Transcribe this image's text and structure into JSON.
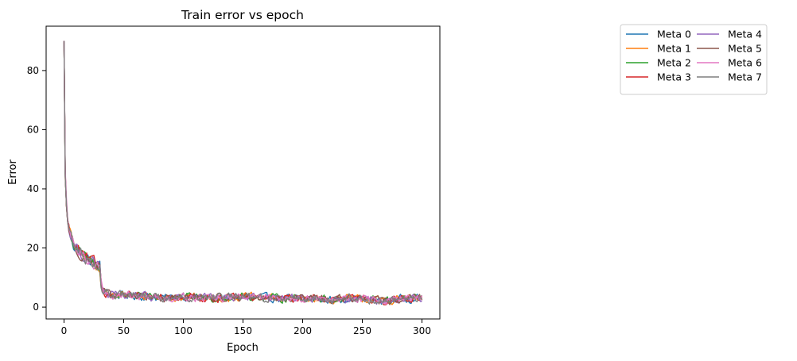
{
  "chart_data": {
    "type": "line",
    "title": "Train error vs epoch",
    "xlabel": "Epoch",
    "ylabel": "Error",
    "xlim": [
      -15,
      315
    ],
    "ylim": [
      -4,
      95
    ],
    "xticks": [
      0,
      50,
      100,
      150,
      200,
      250,
      300
    ],
    "yticks": [
      0,
      20,
      40,
      60,
      80
    ],
    "grid": false,
    "legend": {
      "placement": "outside-top-right",
      "columns": 2
    },
    "epochs": [
      0,
      300
    ],
    "key_points": {
      "x": [
        0,
        1,
        2,
        3,
        5,
        8,
        12,
        20,
        25,
        28,
        30,
        31,
        32,
        34,
        38,
        45,
        55,
        70,
        85,
        100,
        125,
        150,
        180,
        210,
        225,
        240,
        260,
        270,
        285,
        300
      ],
      "y": [
        90,
        45,
        35,
        29,
        25,
        21,
        19,
        16,
        15,
        14,
        14,
        8,
        6,
        5,
        4,
        4,
        4,
        3.5,
        3,
        3.5,
        3,
        3.5,
        3,
        3,
        2.5,
        3,
        2.5,
        2,
        3,
        3
      ]
    },
    "series": [
      {
        "name": "Meta 0",
        "color": "#1f77b4"
      },
      {
        "name": "Meta 1",
        "color": "#ff7f0e"
      },
      {
        "name": "Meta 2",
        "color": "#2ca02c"
      },
      {
        "name": "Meta 3",
        "color": "#d62728"
      },
      {
        "name": "Meta 4",
        "color": "#9467bd"
      },
      {
        "name": "Meta 5",
        "color": "#8c564b"
      },
      {
        "name": "Meta 6",
        "color": "#e377c2"
      },
      {
        "name": "Meta 7",
        "color": "#7f7f7f"
      }
    ]
  }
}
